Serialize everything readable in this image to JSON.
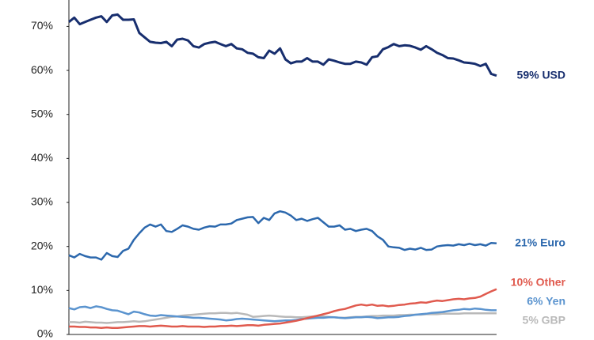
{
  "chart_data": {
    "type": "line",
    "ylim": [
      0,
      76
    ],
    "yticks": [
      {
        "value": 0,
        "label": "0%"
      },
      {
        "value": 10,
        "label": "10%"
      },
      {
        "value": 20,
        "label": "20%"
      },
      {
        "value": 30,
        "label": "30%"
      },
      {
        "value": 40,
        "label": "40%"
      },
      {
        "value": 50,
        "label": "50%"
      },
      {
        "value": 60,
        "label": "60%"
      },
      {
        "value": 70,
        "label": "70%"
      }
    ],
    "series": [
      {
        "name": "59% USD",
        "color": "#172e6e",
        "values": [
          71,
          72,
          70.5,
          71,
          71.5,
          72,
          72.3,
          71,
          72.5,
          72.7,
          71.5,
          71.5,
          71.6,
          68.5,
          67.5,
          66.5,
          66.3,
          66.2,
          66.5,
          65.5,
          67,
          67.2,
          66.8,
          65.5,
          65.2,
          66,
          66.3,
          66.5,
          66,
          65.5,
          66,
          65,
          64.8,
          64,
          63.8,
          63,
          62.8,
          64.5,
          63.8,
          65,
          62.5,
          61.6,
          62,
          62,
          62.8,
          62,
          62,
          61.3,
          62.5,
          62.2,
          61.8,
          61.5,
          61.5,
          62,
          61.8,
          61.3,
          63,
          63.2,
          64.8,
          65.3,
          66,
          65.5,
          65.7,
          65.6,
          65.2,
          64.7,
          65.5,
          64.8,
          64,
          63.5,
          62.8,
          62.7,
          62.3,
          61.8,
          61.7,
          61.5,
          61,
          61.5,
          59.2,
          58.8
        ]
      },
      {
        "name": "21% Euro",
        "color": "#2c68ad",
        "values": [
          18,
          17.5,
          18.3,
          17.8,
          17.5,
          17.5,
          17,
          18.5,
          17.8,
          17.6,
          19,
          19.5,
          21.5,
          23,
          24.3,
          25,
          24.5,
          25,
          23.5,
          23.3,
          24,
          24.8,
          24.5,
          24,
          23.8,
          24.3,
          24.6,
          24.5,
          25,
          25,
          25.2,
          26,
          26.3,
          26.6,
          26.7,
          25.3,
          26.5,
          26,
          27.5,
          28,
          27.7,
          27,
          26,
          26.3,
          25.8,
          26.2,
          26.5,
          25.5,
          24.5,
          24.5,
          24.8,
          23.8,
          24,
          23.5,
          23.8,
          24,
          23.5,
          22.3,
          21.5,
          20,
          19.8,
          19.7,
          19.2,
          19.5,
          19.3,
          19.7,
          19.2,
          19.3,
          20,
          20.2,
          20.3,
          20.2,
          20.5,
          20.3,
          20.6,
          20.3,
          20.5,
          20.2,
          20.8,
          20.7
        ]
      },
      {
        "name": "10% Other",
        "color": "#e05a4e",
        "values": [
          1.8,
          1.8,
          1.7,
          1.7,
          1.6,
          1.6,
          1.5,
          1.6,
          1.5,
          1.5,
          1.6,
          1.7,
          1.8,
          1.9,
          1.9,
          1.8,
          1.9,
          2,
          1.9,
          1.8,
          1.8,
          1.9,
          1.8,
          1.8,
          1.8,
          1.7,
          1.8,
          1.8,
          1.9,
          1.9,
          2,
          1.9,
          2,
          2.1,
          2.1,
          2,
          2.2,
          2.3,
          2.4,
          2.5,
          2.7,
          2.9,
          3.1,
          3.4,
          3.7,
          4,
          4.3,
          4.6,
          4.9,
          5.3,
          5.6,
          5.8,
          6.2,
          6.6,
          6.8,
          6.6,
          6.8,
          6.5,
          6.6,
          6.4,
          6.5,
          6.7,
          6.8,
          7,
          7.1,
          7.3,
          7.2,
          7.5,
          7.7,
          7.6,
          7.8,
          8,
          8.1,
          8,
          8.2,
          8.3,
          8.6,
          9.2,
          9.8,
          10.3
        ]
      },
      {
        "name": "6% Yen",
        "color": "#5b94cf",
        "values": [
          6,
          5.7,
          6.2,
          6.3,
          6,
          6.4,
          6.2,
          5.8,
          5.5,
          5.4,
          5,
          4.6,
          5.2,
          5,
          4.6,
          4.3,
          4.2,
          4.4,
          4.3,
          4.2,
          4.1,
          4,
          3.9,
          3.8,
          3.8,
          3.7,
          3.6,
          3.5,
          3.4,
          3.2,
          3.3,
          3.5,
          3.6,
          3.5,
          3.4,
          3.3,
          3.2,
          3.1,
          3,
          3.1,
          3.2,
          3.2,
          3.3,
          3.5,
          3.6,
          3.7,
          3.8,
          3.8,
          3.9,
          3.9,
          3.8,
          3.7,
          3.8,
          3.9,
          3.9,
          4,
          3.9,
          3.7,
          3.8,
          3.9,
          3.9,
          4,
          4.2,
          4.3,
          4.5,
          4.6,
          4.7,
          4.9,
          5,
          5.1,
          5.3,
          5.5,
          5.6,
          5.8,
          5.7,
          5.9,
          5.8,
          5.6,
          5.5,
          5.5
        ]
      },
      {
        "name": "5% GBP",
        "color": "#b9b9b9",
        "values": [
          2.8,
          2.8,
          2.7,
          2.9,
          2.8,
          2.7,
          2.7,
          2.6,
          2.7,
          2.8,
          2.8,
          2.9,
          3,
          2.9,
          3,
          3.2,
          3.4,
          3.6,
          3.8,
          4,
          4.1,
          4.3,
          4.4,
          4.5,
          4.6,
          4.7,
          4.8,
          4.8,
          4.9,
          4.9,
          4.8,
          4.9,
          4.7,
          4.5,
          4,
          4.1,
          4.2,
          4.3,
          4.2,
          4.1,
          4,
          4,
          3.9,
          3.9,
          4,
          4.1,
          4.2,
          4.1,
          4,
          3.9,
          3.8,
          3.8,
          3.9,
          4,
          4,
          4.1,
          4.2,
          4.2,
          4.3,
          4.3,
          4.3,
          4.4,
          4.4,
          4.5,
          4.5,
          4.5,
          4.6,
          4.6,
          4.6,
          4.7,
          4.7,
          4.7,
          4.7,
          4.8,
          4.8,
          4.8,
          4.8,
          4.8,
          4.8,
          4.8
        ]
      }
    ]
  }
}
